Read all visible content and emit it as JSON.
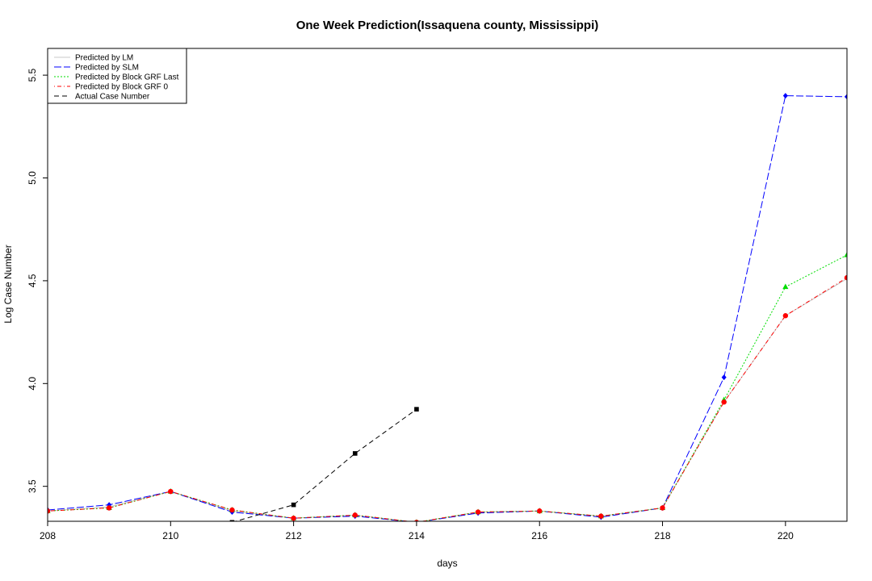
{
  "chart_data": {
    "type": "line",
    "title": "One Week Prediction(Issaquena county, Mississippi)",
    "xlabel": "days",
    "ylabel": "Log Case Number",
    "xlim": [
      208,
      221
    ],
    "ylim": [
      3.33,
      5.63
    ],
    "xticks": [
      208,
      210,
      212,
      214,
      216,
      218,
      220
    ],
    "yticks": [
      3.5,
      4.0,
      4.5,
      5.0,
      5.5
    ],
    "grid": false,
    "legend_position": "top-left",
    "series": [
      {
        "name": "Predicted by LM",
        "color": "#c8c8c8",
        "dash": "solid",
        "marker": "none",
        "x": [
          208,
          209,
          210,
          211,
          212,
          213,
          214,
          215,
          216,
          217,
          218,
          219,
          220,
          221
        ],
        "y": [
          3.38,
          3.4,
          3.475,
          3.38,
          3.345,
          3.36,
          3.325,
          3.375,
          3.38,
          3.355,
          3.395,
          3.91,
          4.33,
          4.51
        ]
      },
      {
        "name": "Predicted by SLM",
        "color": "#0000ff",
        "dash": "longdash",
        "marker": "diamond",
        "x": [
          208,
          209,
          210,
          211,
          212,
          213,
          214,
          215,
          216,
          217,
          218,
          219,
          220,
          221
        ],
        "y": [
          3.385,
          3.41,
          3.475,
          3.375,
          3.345,
          3.355,
          3.325,
          3.37,
          3.38,
          3.35,
          3.395,
          4.03,
          5.4,
          5.395
        ]
      },
      {
        "name": "Predicted by Block GRF Last",
        "color": "#00dd00",
        "dash": "dotted",
        "marker": "triangle",
        "x": [
          208,
          209,
          210,
          211,
          212,
          213,
          214,
          215,
          216,
          217,
          218,
          219,
          220,
          221
        ],
        "y": [
          3.38,
          3.395,
          3.475,
          3.385,
          3.345,
          3.36,
          3.325,
          3.375,
          3.38,
          3.355,
          3.395,
          3.92,
          4.47,
          4.625
        ]
      },
      {
        "name": "Predicted by Block GRF 0",
        "color": "#ff0000",
        "dash": "dotdash",
        "marker": "circle",
        "x": [
          208,
          209,
          210,
          211,
          212,
          213,
          214,
          215,
          216,
          217,
          218,
          219,
          220,
          221
        ],
        "y": [
          3.38,
          3.395,
          3.475,
          3.385,
          3.345,
          3.36,
          3.325,
          3.375,
          3.38,
          3.355,
          3.395,
          3.91,
          4.33,
          4.515
        ]
      },
      {
        "name": "Actual Case Number",
        "color": "#000000",
        "dash": "dashed",
        "marker": "square",
        "x": [
          211,
          212,
          213,
          214
        ],
        "y": [
          3.325,
          3.41,
          3.66,
          3.875
        ]
      }
    ]
  }
}
